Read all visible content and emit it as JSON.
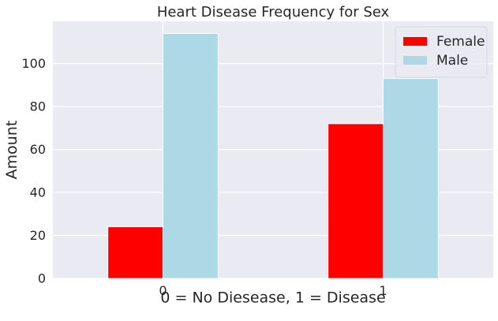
{
  "chart_data": {
    "type": "bar",
    "title": "Heart Disease Frequency for Sex",
    "xlabel": "0 = No Diesease, 1 = Disease",
    "ylabel": "Amount",
    "categories": [
      "0",
      "1"
    ],
    "series": [
      {
        "name": "Female",
        "values": [
          24,
          72
        ],
        "color": "#ff0000"
      },
      {
        "name": "Male",
        "values": [
          114,
          93
        ],
        "color": "#add8e6"
      }
    ],
    "ylim": [
      0,
      119.7
    ],
    "yticks": [
      0,
      20,
      40,
      60,
      80,
      100
    ],
    "grid": true,
    "legend": "top-right",
    "background_color": "#eaeaf2"
  }
}
